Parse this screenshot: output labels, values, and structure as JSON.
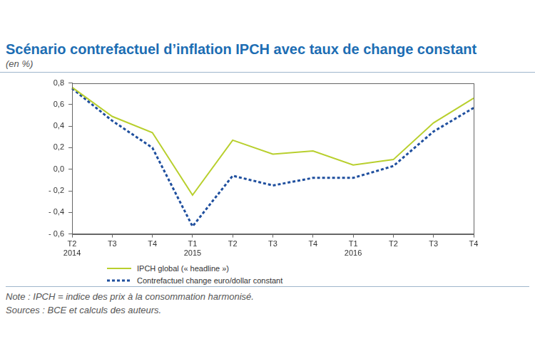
{
  "chart_data": {
    "type": "line",
    "title": "Scénario contrefactuel d’inflation IPCH avec taux de change constant",
    "subtitle": "(en %)",
    "categories": [
      [
        "T2",
        "2014"
      ],
      [
        "T3"
      ],
      [
        "T4"
      ],
      [
        "T1",
        "2015"
      ],
      [
        "T2"
      ],
      [
        "T3"
      ],
      [
        "T4"
      ],
      [
        "T1",
        "2016"
      ],
      [
        "T2"
      ],
      [
        "T3"
      ],
      [
        "T4"
      ]
    ],
    "series": [
      {
        "name": "IPCH global (« headline »)",
        "color": "#b8cf2d",
        "line_style": "solid",
        "marker": "none",
        "values": [
          0.76,
          0.49,
          0.34,
          -0.24,
          0.27,
          0.14,
          0.17,
          0.04,
          0.09,
          0.43,
          0.66
        ]
      },
      {
        "name": "Contrefactuel change euro/dollar constant",
        "color": "#1f4f9e",
        "line_style": "dashed",
        "marker": "none",
        "values": [
          0.75,
          0.45,
          0.2,
          -0.53,
          -0.06,
          -0.15,
          -0.08,
          -0.08,
          0.03,
          0.35,
          0.57
        ]
      }
    ],
    "ylim": [
      -0.6,
      0.8
    ],
    "yticks": [
      {
        "value": -0.6,
        "label": "- 0,6"
      },
      {
        "value": -0.4,
        "label": "- 0,4"
      },
      {
        "value": -0.2,
        "label": "- 0,2"
      },
      {
        "value": 0,
        "label": "0,0"
      },
      {
        "value": 0.2,
        "label": "0,2"
      },
      {
        "value": 0.4,
        "label": "0,4"
      },
      {
        "value": 0.6,
        "label": "0,6"
      },
      {
        "value": 0.8,
        "label": "0,8"
      }
    ],
    "grid": false,
    "legend": "bottom-left",
    "notes": [
      "Note : IPCH = indice des prix à la consommation harmonisé.",
      "Sources : BCE et calculs des auteurs."
    ]
  }
}
